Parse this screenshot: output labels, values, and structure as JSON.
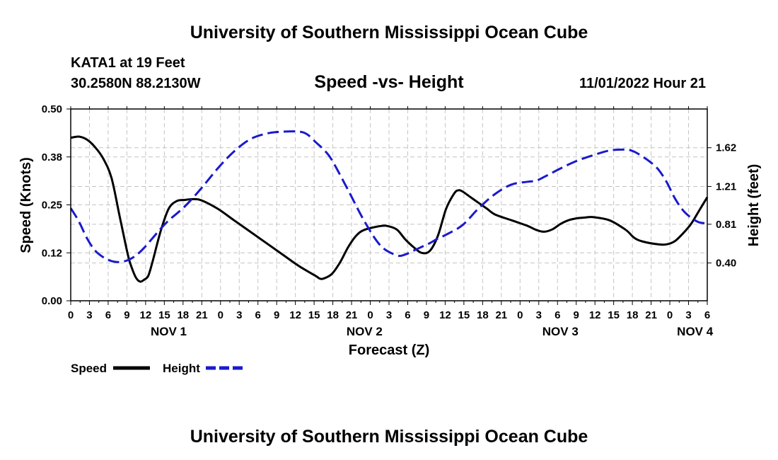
{
  "page_title": "University of Southern Mississippi Ocean Cube",
  "footer_title": "University of Southern Mississippi Ocean Cube",
  "station": {
    "name": "KATA1 at 19 Feet",
    "coords": "30.2580N  88.2130W"
  },
  "chart_title": "Speed -vs- Height",
  "forecast_time": "11/01/2022 Hour 21",
  "chart_data": {
    "type": "line",
    "title": "Speed -vs- Height",
    "xlabel": "Forecast (Z)",
    "ylabel": "Speed (Knots)",
    "y2label": "Height (feet)",
    "x_hours_range": [
      0,
      78
    ],
    "ylim": [
      0,
      0.5
    ],
    "y2lim": [
      0,
      2.03
    ],
    "y_ticks": [
      0.0,
      0.125,
      0.25,
      0.375,
      0.5
    ],
    "y_tick_labels": [
      "0.00",
      "0.12",
      "0.25",
      "0.38",
      "0.50"
    ],
    "y2_ticks": [
      0.4,
      0.81,
      1.21,
      1.62
    ],
    "y2_tick_labels": [
      "0.40",
      "0.81",
      "1.21",
      "1.62"
    ],
    "x_tick_labels": [
      "0",
      "3",
      "6",
      "9",
      "12",
      "15",
      "18",
      "21",
      "0",
      "3",
      "6",
      "9",
      "12",
      "15",
      "18",
      "21",
      "0",
      "3",
      "6",
      "9",
      "12",
      "15",
      "18",
      "21",
      "0",
      "3",
      "6",
      "9",
      "12",
      "15",
      "18",
      "21",
      "0",
      "3",
      "6"
    ],
    "date_labels": [
      {
        "label": "NOV 1",
        "hour": 12
      },
      {
        "label": "NOV 2",
        "hour": 36
      },
      {
        "label": "NOV 3",
        "hour": 60
      },
      {
        "label": "NOV 4",
        "hour": 76.5
      }
    ],
    "grid": true,
    "legend_position": "bottom-left",
    "series": [
      {
        "name": "Speed",
        "axis": "left",
        "color": "#000000",
        "dash": "solid",
        "x": [
          0,
          1,
          2,
          3,
          4,
          5,
          6,
          7,
          7.5,
          8,
          8.5,
          9,
          9.5,
          10,
          11,
          12,
          13,
          14,
          15,
          16,
          18,
          20,
          22,
          24,
          26,
          28,
          30,
          30.5,
          31,
          32,
          33,
          34,
          35,
          36,
          38,
          39,
          40,
          41,
          42,
          43,
          44,
          45,
          46,
          47,
          47.5,
          48,
          49,
          50,
          51,
          52,
          54,
          56,
          57,
          58,
          59,
          60,
          61,
          62,
          63,
          64,
          66,
          68,
          69,
          70,
          72,
          73,
          74,
          75,
          76,
          77,
          78
        ],
        "y": [
          0.425,
          0.428,
          0.42,
          0.4,
          0.37,
          0.32,
          0.22,
          0.12,
          0.085,
          0.06,
          0.05,
          0.055,
          0.065,
          0.1,
          0.18,
          0.24,
          0.26,
          0.263,
          0.265,
          0.262,
          0.24,
          0.21,
          0.18,
          0.15,
          0.12,
          0.09,
          0.065,
          0.058,
          0.058,
          0.07,
          0.1,
          0.14,
          0.17,
          0.185,
          0.195,
          0.194,
          0.185,
          0.16,
          0.14,
          0.125,
          0.13,
          0.17,
          0.24,
          0.28,
          0.288,
          0.285,
          0.27,
          0.255,
          0.24,
          0.225,
          0.21,
          0.195,
          0.185,
          0.18,
          0.186,
          0.2,
          0.21,
          0.215,
          0.217,
          0.218,
          0.21,
          0.185,
          0.165,
          0.155,
          0.147,
          0.147,
          0.155,
          0.175,
          0.2,
          0.235,
          0.27
        ]
      },
      {
        "name": "Height",
        "axis": "right",
        "color": "#1a1acc",
        "dash": "dashed",
        "x": [
          0,
          1,
          2,
          3,
          4,
          5,
          6,
          7,
          8,
          9,
          10,
          11,
          12,
          14,
          16,
          18,
          20,
          22,
          24,
          26,
          28,
          29,
          30,
          31,
          32,
          34,
          36,
          38,
          40,
          41,
          42,
          43,
          44,
          45,
          46,
          48,
          50,
          52,
          54,
          56,
          57,
          58,
          60,
          62,
          64,
          66,
          68,
          69,
          70,
          71,
          72,
          73,
          74,
          75,
          76,
          77,
          78
        ],
        "y": [
          0.98,
          0.84,
          0.66,
          0.53,
          0.46,
          0.42,
          0.41,
          0.43,
          0.48,
          0.56,
          0.66,
          0.76,
          0.85,
          1.0,
          1.19,
          1.4,
          1.58,
          1.71,
          1.77,
          1.79,
          1.79,
          1.76,
          1.68,
          1.6,
          1.49,
          1.17,
          0.84,
          0.58,
          0.48,
          0.49,
          0.53,
          0.57,
          0.61,
          0.66,
          0.7,
          0.8,
          0.98,
          1.13,
          1.23,
          1.26,
          1.27,
          1.31,
          1.4,
          1.48,
          1.54,
          1.59,
          1.6,
          1.58,
          1.53,
          1.47,
          1.39,
          1.26,
          1.09,
          0.96,
          0.88,
          0.83,
          0.82
        ]
      }
    ]
  }
}
